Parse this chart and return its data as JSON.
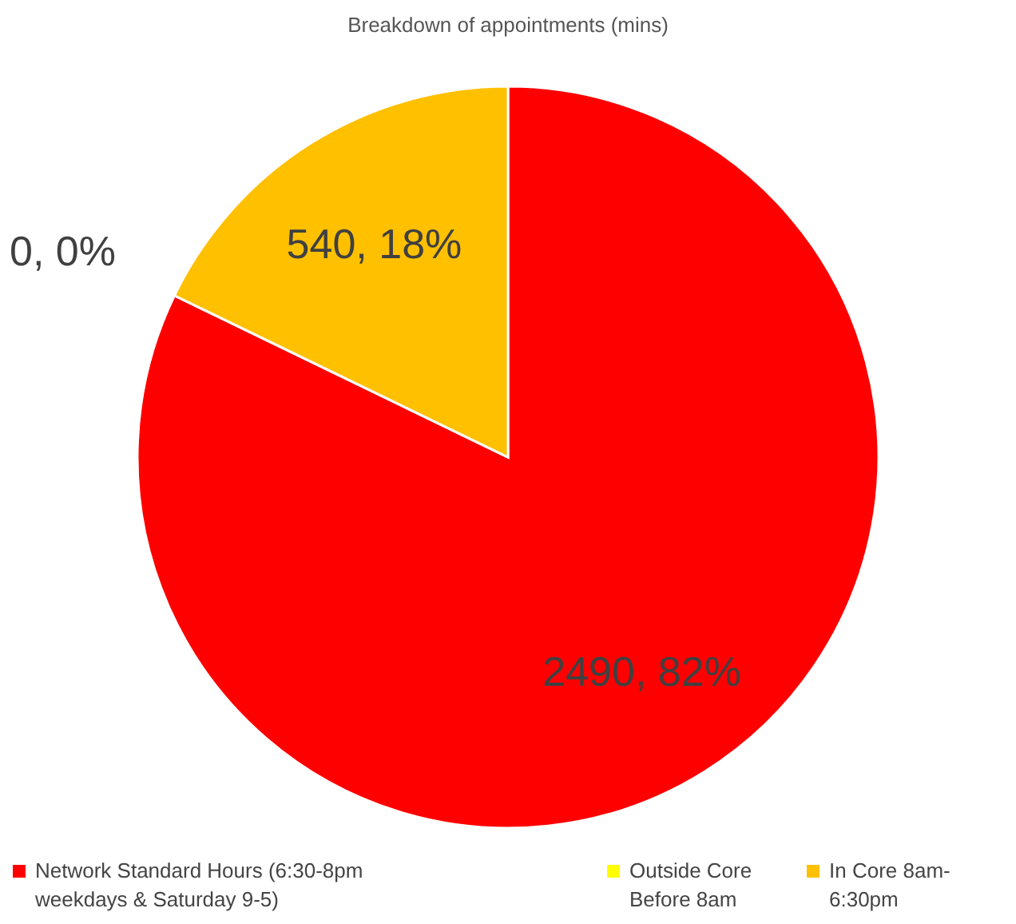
{
  "chart_data": {
    "type": "pie",
    "title": "Breakdown of appointments (mins)",
    "categories": [
      "Network Standard Hours (6:30-8pm weekdays & Saturday 9-5)",
      "Outside Core Before 8am",
      "In Core 8am-6:30pm"
    ],
    "values": [
      2490,
      0,
      540
    ],
    "colors": [
      "#ff0000",
      "#ffff00",
      "#ffc000"
    ],
    "value_labels": [
      "2490, 82%",
      "0, 0%",
      "540, 18%"
    ],
    "legend": "bottom"
  }
}
